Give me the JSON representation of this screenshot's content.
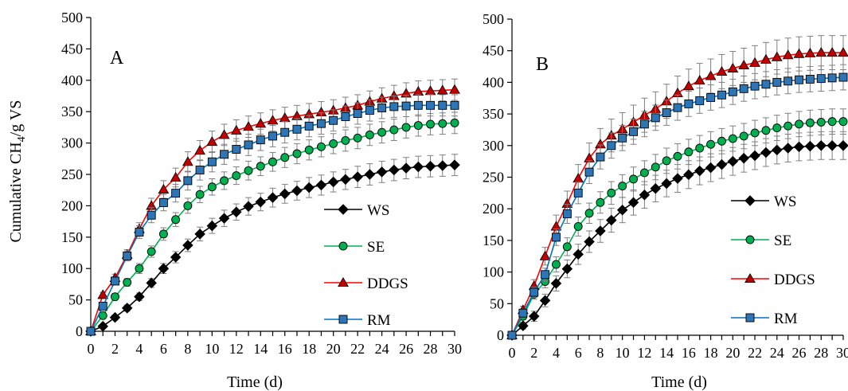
{
  "chart_data": [
    {
      "type": "line",
      "panel_label": "A",
      "xlabel": "Time (d)",
      "ylabel_main": "Cumulative CH",
      "ylabel_sub": "4",
      "ylabel_tail": "/g VS",
      "xlim": [
        0,
        30
      ],
      "ylim": [
        0,
        500
      ],
      "xticks": [
        0,
        2,
        4,
        6,
        8,
        10,
        12,
        14,
        16,
        18,
        20,
        22,
        24,
        26,
        28,
        30
      ],
      "yticks": [
        0,
        50,
        100,
        150,
        200,
        250,
        300,
        350,
        400,
        450,
        500
      ],
      "grid": false,
      "legend_position": "center-right",
      "x": [
        0,
        1,
        2,
        3,
        4,
        5,
        6,
        7,
        8,
        9,
        10,
        11,
        12,
        13,
        14,
        15,
        16,
        17,
        18,
        19,
        20,
        21,
        22,
        23,
        24,
        25,
        26,
        27,
        28,
        29,
        30
      ],
      "series": [
        {
          "name": "WS",
          "marker": "diamond",
          "line_color": "#000000",
          "marker_fill": "#000000",
          "values": [
            0,
            8,
            22,
            37,
            55,
            77,
            100,
            118,
            137,
            155,
            168,
            180,
            190,
            199,
            206,
            213,
            219,
            224,
            229,
            233,
            238,
            242,
            246,
            250,
            254,
            257,
            260,
            262,
            263,
            264,
            265
          ],
          "error": [
            0,
            2,
            4,
            5,
            6,
            7,
            8,
            9,
            10,
            11,
            12,
            13,
            13,
            14,
            14,
            15,
            15,
            15,
            16,
            16,
            16,
            16,
            17,
            17,
            17,
            17,
            17,
            17,
            17,
            17,
            17
          ]
        },
        {
          "name": "SE",
          "marker": "circle",
          "line_color": "#00b050",
          "marker_fill": "#00b050",
          "values": [
            0,
            25,
            55,
            78,
            100,
            127,
            155,
            178,
            200,
            218,
            230,
            240,
            248,
            256,
            263,
            270,
            277,
            283,
            289,
            294,
            299,
            304,
            308,
            313,
            317,
            321,
            325,
            328,
            330,
            331,
            332
          ],
          "error": [
            0,
            3,
            5,
            6,
            8,
            9,
            10,
            11,
            12,
            13,
            13,
            14,
            14,
            15,
            15,
            15,
            16,
            16,
            16,
            16,
            16,
            17,
            17,
            17,
            17,
            17,
            17,
            17,
            17,
            17,
            17
          ]
        },
        {
          "name": "DDGS",
          "marker": "triangle",
          "line_color": "#ff0000",
          "marker_fill": "#c00000",
          "values": [
            0,
            58,
            85,
            122,
            163,
            200,
            226,
            245,
            270,
            288,
            302,
            313,
            320,
            326,
            331,
            336,
            340,
            343,
            346,
            349,
            352,
            356,
            360,
            366,
            371,
            375,
            379,
            382,
            383,
            384,
            385
          ],
          "error": [
            0,
            4,
            6,
            8,
            10,
            12,
            14,
            15,
            16,
            16,
            17,
            17,
            17,
            17,
            17,
            17,
            17,
            17,
            17,
            17,
            17,
            17,
            17,
            17,
            17,
            17,
            17,
            17,
            17,
            17,
            17
          ]
        },
        {
          "name": "RM",
          "marker": "square",
          "line_color": "#0070c0",
          "marker_fill": "#2e75b6",
          "values": [
            0,
            40,
            80,
            120,
            158,
            185,
            205,
            220,
            240,
            257,
            270,
            282,
            290,
            297,
            305,
            311,
            317,
            322,
            327,
            331,
            336,
            342,
            347,
            352,
            356,
            358,
            359,
            360,
            360,
            360,
            360
          ],
          "error": [
            0,
            4,
            6,
            8,
            10,
            12,
            13,
            14,
            15,
            16,
            16,
            16,
            17,
            17,
            17,
            17,
            17,
            17,
            17,
            17,
            17,
            17,
            17,
            17,
            17,
            17,
            17,
            17,
            17,
            17,
            17
          ]
        }
      ]
    },
    {
      "type": "line",
      "panel_label": "B",
      "xlabel": "Time (d)",
      "xlim": [
        0,
        30
      ],
      "ylim": [
        0,
        500
      ],
      "xticks": [
        0,
        2,
        4,
        6,
        8,
        10,
        12,
        14,
        16,
        18,
        20,
        22,
        24,
        26,
        28,
        30
      ],
      "yticks": [
        0,
        50,
        100,
        150,
        200,
        250,
        300,
        350,
        400,
        450,
        500
      ],
      "grid": false,
      "legend_position": "center-right",
      "x": [
        0,
        1,
        2,
        3,
        4,
        5,
        6,
        7,
        8,
        9,
        10,
        11,
        12,
        13,
        14,
        15,
        16,
        17,
        18,
        19,
        20,
        21,
        22,
        23,
        24,
        25,
        26,
        27,
        28,
        29,
        30
      ],
      "series": [
        {
          "name": "WS",
          "marker": "diamond",
          "line_color": "#000000",
          "marker_fill": "#000000",
          "values": [
            0,
            15,
            30,
            55,
            82,
            105,
            128,
            148,
            165,
            182,
            198,
            210,
            222,
            232,
            240,
            248,
            254,
            260,
            265,
            270,
            275,
            280,
            284,
            289,
            293,
            296,
            298,
            299,
            300,
            300,
            300
          ],
          "error": [
            0,
            5,
            8,
            10,
            12,
            14,
            16,
            17,
            18,
            19,
            20,
            20,
            21,
            21,
            21,
            22,
            22,
            22,
            22,
            22,
            22,
            22,
            22,
            22,
            22,
            22,
            22,
            22,
            22,
            22,
            22
          ]
        },
        {
          "name": "SE",
          "marker": "circle",
          "line_color": "#00b050",
          "marker_fill": "#00b050",
          "values": [
            0,
            30,
            65,
            85,
            112,
            140,
            172,
            193,
            210,
            225,
            236,
            247,
            257,
            266,
            276,
            283,
            290,
            296,
            302,
            307,
            311,
            315,
            320,
            324,
            328,
            331,
            334,
            336,
            337,
            338,
            338
          ],
          "error": [
            0,
            5,
            8,
            10,
            12,
            14,
            15,
            16,
            17,
            18,
            18,
            19,
            19,
            20,
            20,
            20,
            20,
            20,
            20,
            20,
            20,
            20,
            20,
            20,
            20,
            20,
            20,
            20,
            20,
            20,
            20
          ]
        },
        {
          "name": "DDGS",
          "marker": "triangle",
          "line_color": "#ff0000",
          "marker_fill": "#c00000",
          "values": [
            0,
            40,
            78,
            125,
            172,
            208,
            248,
            280,
            302,
            316,
            326,
            337,
            348,
            358,
            370,
            383,
            394,
            403,
            410,
            417,
            422,
            427,
            431,
            436,
            440,
            443,
            445,
            446,
            447,
            447,
            447
          ],
          "error": [
            0,
            6,
            10,
            14,
            18,
            20,
            22,
            24,
            25,
            26,
            26,
            27,
            27,
            27,
            27,
            27,
            27,
            27,
            27,
            27,
            27,
            27,
            27,
            27,
            27,
            27,
            27,
            27,
            27,
            27,
            27
          ]
        },
        {
          "name": "RM",
          "marker": "square",
          "line_color": "#0070c0",
          "marker_fill": "#2e75b6",
          "values": [
            0,
            35,
            68,
            96,
            155,
            192,
            225,
            258,
            282,
            300,
            312,
            322,
            334,
            344,
            352,
            360,
            366,
            371,
            376,
            380,
            385,
            390,
            394,
            397,
            400,
            402,
            404,
            405,
            406,
            407,
            408
          ],
          "error": [
            0,
            5,
            8,
            10,
            13,
            15,
            17,
            18,
            19,
            20,
            20,
            20,
            20,
            20,
            20,
            20,
            20,
            20,
            20,
            20,
            20,
            20,
            20,
            20,
            20,
            20,
            20,
            20,
            20,
            20,
            20
          ]
        }
      ]
    }
  ]
}
